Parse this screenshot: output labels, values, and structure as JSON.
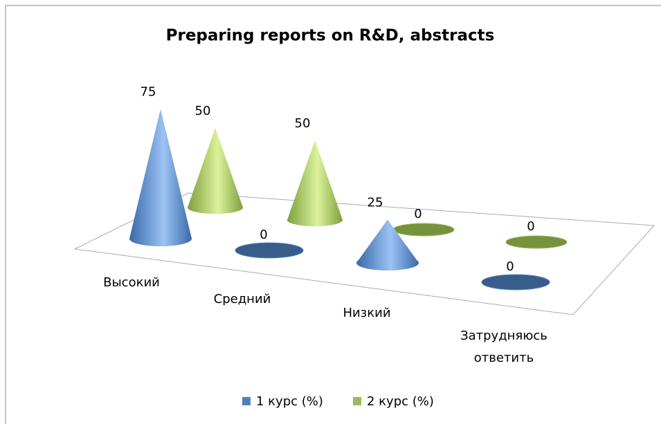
{
  "chart_data": {
    "type": "cone",
    "title": "Preparing reports on R&D, abstracts",
    "categories": [
      "Высокий",
      "Средний",
      "Низкий",
      "Затрудняюсь ответить"
    ],
    "series": [
      {
        "name": "1 курс (%)",
        "color": "#4f81bd",
        "values": [
          75,
          0,
          25,
          0
        ]
      },
      {
        "name": "2 курс (%)",
        "color": "#9bbb59",
        "values": [
          50,
          50,
          0,
          0
        ]
      }
    ],
    "legend": "bottom"
  }
}
